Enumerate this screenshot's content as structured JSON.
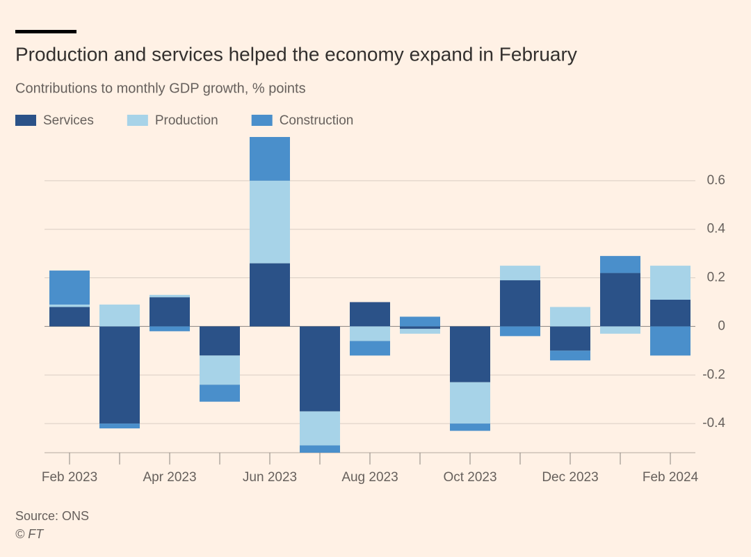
{
  "chart_data": {
    "type": "bar",
    "stacked": true,
    "title": "Production and services helped the economy expand in February",
    "subtitle": "Contributions to monthly GDP growth, % points",
    "source": "Source: ONS",
    "credit": "© FT",
    "categories": [
      "Feb 2023",
      null,
      "Apr 2023",
      null,
      "Jun 2023",
      null,
      "Aug 2023",
      null,
      "Oct 2023",
      null,
      "Dec 2023",
      null,
      "Feb 2024"
    ],
    "series": [
      {
        "name": "Services",
        "color": "#2b5288",
        "values": [
          0.08,
          -0.4,
          0.12,
          -0.12,
          0.26,
          -0.35,
          0.1,
          -0.01,
          -0.23,
          0.19,
          -0.1,
          0.22,
          0.11
        ]
      },
      {
        "name": "Production",
        "color": "#a7d3e8",
        "values": [
          0.01,
          0.09,
          0.01,
          -0.12,
          0.34,
          -0.14,
          -0.06,
          -0.02,
          -0.17,
          0.06,
          0.08,
          -0.03,
          0.14
        ]
      },
      {
        "name": "Construction",
        "color": "#4a8fcb",
        "values": [
          0.14,
          -0.02,
          -0.02,
          -0.07,
          0.18,
          -0.03,
          -0.06,
          0.04,
          -0.03,
          -0.04,
          -0.04,
          0.07,
          -0.12
        ]
      }
    ],
    "ylim": [
      -0.52,
      0.8
    ],
    "yticks": [
      -0.4,
      -0.2,
      0,
      0.2,
      0.4,
      0.6
    ],
    "grid": true
  }
}
